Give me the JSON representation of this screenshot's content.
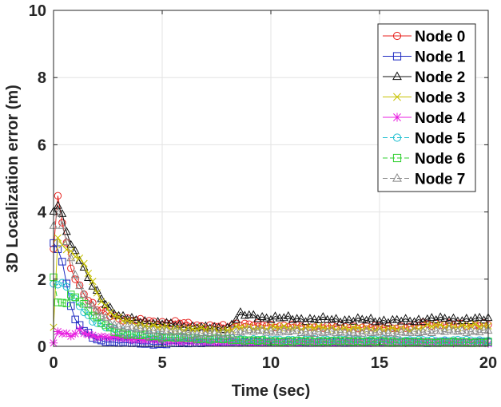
{
  "chart_data": {
    "type": "line",
    "title": "",
    "xlabel": "Time (sec)",
    "ylabel": "3D Localization error (m)",
    "xlim": [
      0,
      20
    ],
    "ylim": [
      0,
      10
    ],
    "xticks": [
      0,
      5,
      10,
      15,
      20
    ],
    "yticks": [
      0,
      2,
      4,
      6,
      8,
      10
    ],
    "x_tick_labels": [
      "0",
      "5",
      "10",
      "15",
      "20"
    ],
    "y_tick_labels": [
      "0",
      "2",
      "4",
      "6",
      "8",
      "10"
    ],
    "grid": true,
    "legend_position": "top-right",
    "sample_step": 0.2,
    "series": [
      {
        "name": "Node 0",
        "color": "#e8231f",
        "marker": "circle",
        "line": "solid",
        "keypoints": [
          [
            0,
            2.9
          ],
          [
            0.1,
            4.85
          ],
          [
            0.3,
            4.0
          ],
          [
            0.5,
            3.4
          ],
          [
            0.8,
            2.3
          ],
          [
            1.2,
            1.8
          ],
          [
            1.6,
            1.4
          ],
          [
            2.0,
            1.1
          ],
          [
            2.5,
            0.95
          ],
          [
            3.0,
            0.85
          ],
          [
            4.0,
            0.75
          ],
          [
            5.0,
            0.72
          ],
          [
            6.0,
            0.68
          ],
          [
            7.0,
            0.6
          ],
          [
            8.0,
            0.58
          ],
          [
            8.5,
            0.7
          ],
          [
            9.0,
            0.65
          ],
          [
            10.0,
            0.62
          ],
          [
            12.0,
            0.6
          ],
          [
            14.0,
            0.58
          ],
          [
            16.5,
            0.57
          ],
          [
            17.0,
            0.68
          ],
          [
            18.0,
            0.65
          ],
          [
            20.0,
            0.65
          ]
        ]
      },
      {
        "name": "Node 1",
        "color": "#1f2bc2",
        "marker": "square",
        "line": "solid",
        "keypoints": [
          [
            0,
            3.0
          ],
          [
            0.2,
            2.9
          ],
          [
            0.4,
            2.5
          ],
          [
            0.7,
            1.5
          ],
          [
            1.0,
            0.8
          ],
          [
            1.4,
            0.5
          ],
          [
            1.8,
            0.25
          ],
          [
            2.2,
            0.15
          ],
          [
            3.0,
            0.12
          ],
          [
            4.0,
            0.08
          ],
          [
            5.0,
            0.06
          ],
          [
            6.0,
            0.1
          ],
          [
            8.0,
            0.12
          ],
          [
            10.0,
            0.12
          ],
          [
            14.0,
            0.12
          ],
          [
            17.0,
            0.12
          ],
          [
            20.0,
            0.12
          ]
        ]
      },
      {
        "name": "Node 2",
        "color": "#111111",
        "marker": "triangle",
        "line": "solid",
        "keypoints": [
          [
            0,
            4.0
          ],
          [
            0.2,
            4.2
          ],
          [
            0.4,
            3.9
          ],
          [
            0.8,
            3.05
          ],
          [
            1.2,
            2.6
          ],
          [
            1.6,
            2.0
          ],
          [
            2.0,
            1.6
          ],
          [
            2.5,
            1.2
          ],
          [
            3.0,
            0.9
          ],
          [
            3.5,
            0.8
          ],
          [
            4.0,
            0.75
          ],
          [
            5.0,
            0.68
          ],
          [
            6.0,
            0.6
          ],
          [
            7.0,
            0.55
          ],
          [
            8.0,
            0.55
          ],
          [
            8.6,
            0.95
          ],
          [
            9.0,
            0.9
          ],
          [
            10.0,
            0.85
          ],
          [
            12.0,
            0.8
          ],
          [
            14.0,
            0.78
          ],
          [
            16.5,
            0.75
          ],
          [
            17.2,
            0.82
          ],
          [
            18.0,
            0.8
          ],
          [
            20.0,
            0.8
          ]
        ]
      },
      {
        "name": "Node 3",
        "color": "#c7c200",
        "marker": "x",
        "line": "solid",
        "keypoints": [
          [
            0,
            0.6
          ],
          [
            0.2,
            3.2
          ],
          [
            0.5,
            3.0
          ],
          [
            0.8,
            2.8
          ],
          [
            1.2,
            2.6
          ],
          [
            1.6,
            2.2
          ],
          [
            2.0,
            1.6
          ],
          [
            2.5,
            1.1
          ],
          [
            3.0,
            0.8
          ],
          [
            4.0,
            0.65
          ],
          [
            5.0,
            0.55
          ],
          [
            6.0,
            0.52
          ],
          [
            7.0,
            0.5
          ],
          [
            8.0,
            0.48
          ],
          [
            8.5,
            0.55
          ],
          [
            10.0,
            0.55
          ],
          [
            12.0,
            0.55
          ],
          [
            14.0,
            0.52
          ],
          [
            16.5,
            0.5
          ],
          [
            17.2,
            0.6
          ],
          [
            20.0,
            0.6
          ]
        ]
      },
      {
        "name": "Node 4",
        "color": "#e81fe0",
        "marker": "asterisk",
        "line": "solid",
        "keypoints": [
          [
            0,
            0.1
          ],
          [
            0.2,
            0.45
          ],
          [
            0.5,
            0.4
          ],
          [
            0.8,
            0.3
          ],
          [
            1.2,
            0.45
          ],
          [
            1.6,
            0.35
          ],
          [
            2.0,
            0.3
          ],
          [
            3.0,
            0.25
          ],
          [
            4.0,
            0.2
          ],
          [
            6.0,
            0.15
          ],
          [
            8.0,
            0.12
          ],
          [
            10.0,
            0.12
          ],
          [
            14.0,
            0.12
          ],
          [
            17.0,
            0.12
          ],
          [
            20.0,
            0.1
          ]
        ]
      },
      {
        "name": "Node 5",
        "color": "#1fbfd0",
        "marker": "circle",
        "line": "dashed",
        "keypoints": [
          [
            0,
            1.85
          ],
          [
            0.2,
            1.9
          ],
          [
            0.5,
            1.85
          ],
          [
            0.8,
            1.5
          ],
          [
            1.2,
            1.2
          ],
          [
            1.6,
            0.9
          ],
          [
            2.0,
            0.7
          ],
          [
            2.5,
            0.55
          ],
          [
            3.0,
            0.45
          ],
          [
            4.0,
            0.35
          ],
          [
            5.0,
            0.3
          ],
          [
            6.0,
            0.25
          ],
          [
            8.0,
            0.22
          ],
          [
            10.0,
            0.2
          ],
          [
            14.0,
            0.2
          ],
          [
            17.0,
            0.18
          ],
          [
            20.0,
            0.18
          ]
        ]
      },
      {
        "name": "Node 6",
        "color": "#2fd02f",
        "marker": "square",
        "line": "dashed",
        "keypoints": [
          [
            0,
            2.1
          ],
          [
            0.2,
            1.3
          ],
          [
            0.5,
            1.2
          ],
          [
            0.8,
            1.5
          ],
          [
            1.2,
            1.4
          ],
          [
            1.6,
            1.1
          ],
          [
            2.0,
            0.8
          ],
          [
            2.5,
            0.55
          ],
          [
            3.0,
            0.4
          ],
          [
            4.0,
            0.32
          ],
          [
            5.0,
            0.28
          ],
          [
            6.0,
            0.25
          ],
          [
            8.0,
            0.2
          ],
          [
            10.0,
            0.15
          ],
          [
            14.0,
            0.15
          ],
          [
            17.0,
            0.12
          ],
          [
            20.0,
            0.12
          ]
        ]
      },
      {
        "name": "Node 7",
        "color": "#8a8a8a",
        "marker": "triangle",
        "line": "dashed",
        "keypoints": [
          [
            0,
            3.6
          ],
          [
            0.2,
            3.9
          ],
          [
            0.4,
            3.6
          ],
          [
            0.8,
            2.6
          ],
          [
            1.2,
            1.8
          ],
          [
            1.6,
            1.3
          ],
          [
            2.0,
            1.0
          ],
          [
            2.5,
            0.75
          ],
          [
            3.0,
            0.6
          ],
          [
            4.0,
            0.5
          ],
          [
            5.0,
            0.45
          ],
          [
            6.0,
            0.4
          ],
          [
            8.0,
            0.35
          ],
          [
            8.6,
            0.45
          ],
          [
            10.0,
            0.45
          ],
          [
            12.0,
            0.42
          ],
          [
            14.0,
            0.4
          ],
          [
            16.5,
            0.4
          ],
          [
            17.2,
            0.45
          ],
          [
            20.0,
            0.45
          ]
        ]
      }
    ]
  }
}
